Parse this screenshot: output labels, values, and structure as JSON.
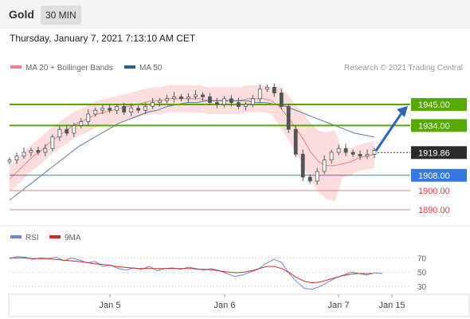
{
  "header": {
    "title": "Gold",
    "timeframe": "30 MIN"
  },
  "datetime": "Thursday, January 7, 2021 7:13:10 AM CET",
  "legend": {
    "ma20": {
      "label": "MA 20 + Bollinger Bands",
      "color": "#f08080"
    },
    "ma50": {
      "label": "MA 50",
      "color": "#2e5b9a"
    }
  },
  "research": "Research © 2021 Trading Central",
  "rsi_legend": {
    "rsi": {
      "label": "RSI",
      "color": "#6a86d8"
    },
    "ma9": {
      "label": "9MA",
      "color": "#d22a2a"
    }
  },
  "chart_data": [
    {
      "type": "candlestick",
      "title": "",
      "xlabel": "",
      "ylabel": "",
      "ylim": [
        1885,
        1960
      ],
      "x_ticks": [
        "Jan 5",
        "Jan 6",
        "Jan 7",
        "Jan 15"
      ],
      "levels": [
        {
          "name": "resistance",
          "value": 1945.0,
          "label": "1945.00",
          "color": "#57a800"
        },
        {
          "name": "resistance",
          "value": 1934.0,
          "label": "1934.00",
          "color": "#57a800"
        },
        {
          "name": "last",
          "value": 1919.86,
          "label": "1919.86",
          "color": "#333333"
        },
        {
          "name": "pivot",
          "value": 1908.0,
          "label": "1908.00",
          "color": "#3778e0"
        },
        {
          "name": "support",
          "value": 1900.0,
          "label": "1900.00",
          "color": "#e08080"
        },
        {
          "name": "support",
          "value": 1890.0,
          "label": "1890.00",
          "color": "#e08080"
        }
      ],
      "close_series": [
        1916,
        1918,
        1920,
        1921,
        1920,
        1922,
        1928,
        1932,
        1930,
        1934,
        1936,
        1940,
        1942,
        1943,
        1942,
        1944,
        1941,
        1943,
        1942,
        1944,
        1946,
        1947,
        1948,
        1949,
        1948,
        1949,
        1950,
        1949,
        1946,
        1945,
        1948,
        1946,
        1944,
        1945,
        1948,
        1953,
        1954,
        1951,
        1944,
        1932,
        1919,
        1907,
        1905,
        1910,
        1916,
        1920,
        1922,
        1920,
        1919,
        1918,
        1919,
        1921
      ],
      "ma20_series": [
        1906,
        1910,
        1914,
        1918,
        1921,
        1925,
        1928,
        1931,
        1934,
        1936,
        1938,
        1940,
        1941,
        1942,
        1943,
        1944,
        1945,
        1946,
        1947,
        1947,
        1948,
        1948,
        1948,
        1948,
        1948,
        1947,
        1947,
        1947,
        1947,
        1947,
        1948,
        1948,
        1948,
        1947,
        1944,
        1939,
        1933,
        1927,
        1920,
        1915,
        1913,
        1913,
        1914,
        1915,
        1917,
        1918,
        1919
      ],
      "ma50_series": [
        1895,
        1899,
        1903,
        1907,
        1911,
        1915,
        1919,
        1923,
        1926,
        1929,
        1932,
        1935,
        1937,
        1939,
        1941,
        1942,
        1944,
        1945,
        1946,
        1946,
        1947,
        1947,
        1947,
        1947,
        1947,
        1946,
        1946,
        1945,
        1944,
        1942,
        1940,
        1938,
        1936,
        1934,
        1932,
        1930,
        1929,
        1928
      ],
      "forecast": {
        "from": 1920,
        "to": 1945
      }
    },
    {
      "type": "line",
      "title": "",
      "ylim": [
        20,
        85
      ],
      "yticks": [
        70,
        50,
        30
      ],
      "series": [
        {
          "name": "RSI",
          "values": [
            69,
            72,
            71,
            68,
            70,
            69,
            71,
            66,
            70,
            67,
            63,
            65,
            58,
            60,
            55,
            53,
            56,
            54,
            58,
            52,
            55,
            56,
            54,
            57,
            55,
            53,
            55,
            52,
            48,
            44,
            46,
            50,
            54,
            62,
            68,
            64,
            48,
            36,
            27,
            26,
            30,
            36,
            42,
            46,
            50,
            48,
            46,
            49,
            48
          ]
        },
        {
          "name": "9MA",
          "values": [
            70,
            70,
            70,
            69,
            69,
            69,
            68,
            67,
            66,
            65,
            64,
            62,
            61,
            60,
            58,
            57,
            56,
            55,
            55,
            55,
            55,
            55,
            55,
            55,
            55,
            54,
            54,
            53,
            51,
            50,
            49,
            50,
            52,
            55,
            58,
            58,
            55,
            49,
            42,
            37,
            35,
            36,
            39,
            42,
            45,
            47,
            48,
            48,
            48
          ]
        }
      ]
    }
  ]
}
